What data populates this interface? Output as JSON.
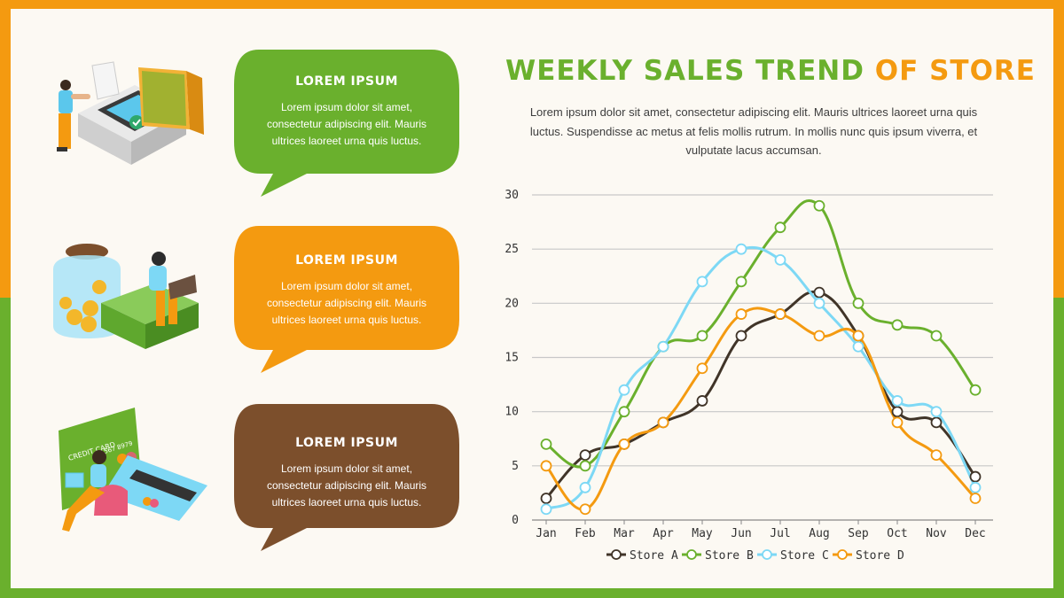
{
  "colors": {
    "orange": "#f49a10",
    "green": "#6ab02d",
    "brown": "#7c4f2c",
    "light_blue": "#7dd8f5",
    "dark": "#403428"
  },
  "bubbles": [
    {
      "title": "LOREM IPSUM",
      "body": "Lorem ipsum dolor sit amet, consectetur adipiscing elit. Mauris ultrices laoreet urna quis luctus.",
      "color": "#6ab02d"
    },
    {
      "title": "LOREM IPSUM",
      "body": "Lorem ipsum dolor sit amet, consectetur adipiscing elit. Mauris ultrices laoreet urna quis luctus.",
      "color": "#f49a10"
    },
    {
      "title": "LOREM IPSUM",
      "body": "Lorem ipsum dolor sit amet, consectetur adipiscing elit. Mauris ultrices laoreet urna quis luctus.",
      "color": "#7c4f2c"
    }
  ],
  "illustrations": {
    "top": "payment-terminal-illustration",
    "middle": "savings-jar-illustration",
    "bottom": "credit-card-illustration",
    "card_text": "CREDIT CARD",
    "card_number": "567 8979"
  },
  "header": {
    "title_part1": "WEEKLY SALES TREND",
    "title_part2": "OF STORE",
    "description": "Lorem ipsum dolor sit amet, consectetur adipiscing elit. Mauris ultrices laoreet urna quis luctus. Suspendisse ac metus at felis mollis rutrum. In mollis nunc quis ipsum viverra, et vulputate lacus accumsan."
  },
  "chart_data": {
    "type": "line",
    "title": "WEEKLY SALES TREND OF STORE",
    "xlabel": "",
    "ylabel": "",
    "categories": [
      "Jan",
      "Feb",
      "Mar",
      "Apr",
      "May",
      "Jun",
      "Jul",
      "Aug",
      "Sep",
      "Oct",
      "Nov",
      "Dec"
    ],
    "ylim": [
      0,
      30
    ],
    "yticks": [
      0,
      5,
      10,
      15,
      20,
      25,
      30
    ],
    "grid": true,
    "legend_position": "bottom",
    "series": [
      {
        "name": "Store A",
        "color": "#403428",
        "values": [
          2,
          6,
          7,
          9,
          11,
          17,
          19,
          21,
          17,
          10,
          9,
          4
        ]
      },
      {
        "name": "Store B",
        "color": "#6ab02d",
        "values": [
          7,
          5,
          10,
          16,
          17,
          22,
          27,
          29,
          20,
          18,
          17,
          12
        ]
      },
      {
        "name": "Store C",
        "color": "#7dd8f5",
        "values": [
          1,
          3,
          12,
          16,
          22,
          25,
          24,
          20,
          16,
          11,
          10,
          3
        ]
      },
      {
        "name": "Store D",
        "color": "#f49a10",
        "values": [
          5,
          1,
          7,
          9,
          14,
          19,
          19,
          17,
          17,
          9,
          6,
          2
        ]
      }
    ]
  }
}
